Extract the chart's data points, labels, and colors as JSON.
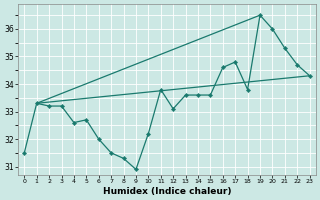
{
  "xlabel": "Humidex (Indice chaleur)",
  "bg_color": "#cce8e4",
  "grid_color": "#ffffff",
  "line_color": "#1a7a6e",
  "x": [
    0,
    1,
    2,
    3,
    4,
    5,
    6,
    7,
    8,
    9,
    10,
    11,
    12,
    13,
    14,
    15,
    16,
    17,
    18,
    19,
    20,
    21,
    22,
    23
  ],
  "zigzag": [
    31.5,
    33.3,
    33.2,
    33.2,
    32.6,
    32.7,
    32.0,
    31.5,
    31.3,
    30.9,
    32.2,
    33.8,
    33.1,
    33.6,
    33.6,
    33.6,
    34.6,
    34.8,
    33.8,
    36.5,
    36.0,
    35.3,
    34.7,
    34.3
  ],
  "upper_line_x": [
    1,
    19
  ],
  "upper_line_y": [
    33.3,
    36.5
  ],
  "lower_line_x": [
    1,
    23
  ],
  "lower_line_y": [
    33.3,
    34.3
  ],
  "ylim": [
    30.7,
    36.9
  ],
  "yticks": [
    31,
    32,
    33,
    34,
    35,
    36
  ],
  "xticks": [
    0,
    1,
    2,
    3,
    4,
    5,
    6,
    7,
    8,
    9,
    10,
    11,
    12,
    13,
    14,
    15,
    16,
    17,
    18,
    19,
    20,
    21,
    22,
    23
  ]
}
